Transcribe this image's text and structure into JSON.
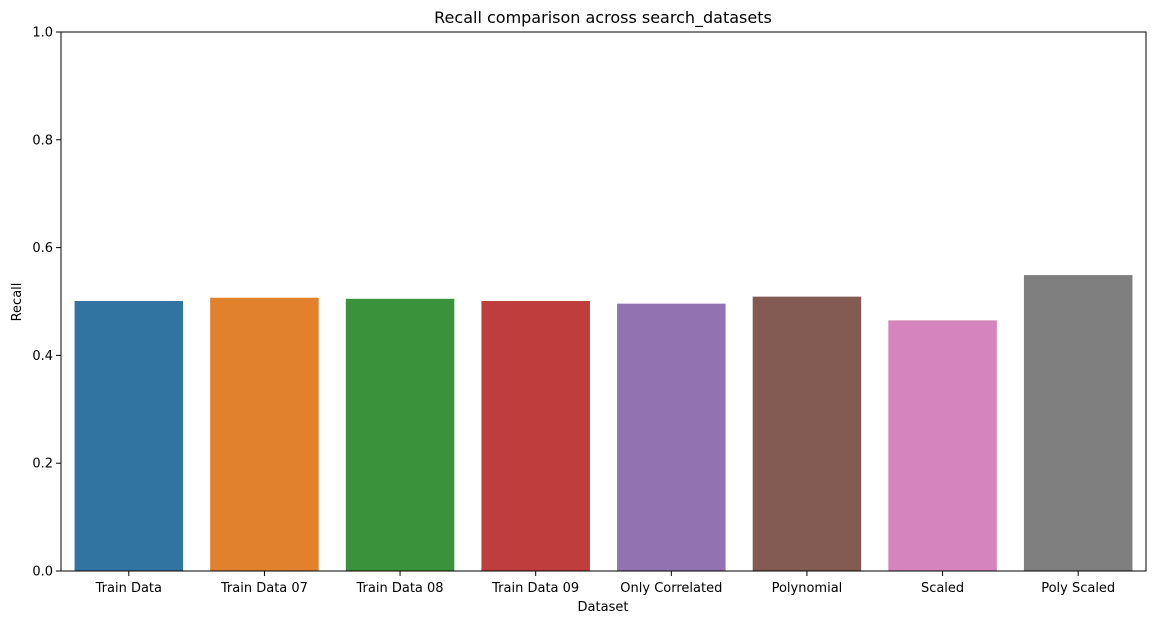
{
  "chart_data": {
    "type": "bar",
    "title": "Recall comparison across search_datasets",
    "xlabel": "Dataset",
    "ylabel": "Recall",
    "ylim": [
      0,
      1.0
    ],
    "yticks": [
      "0.0",
      "0.2",
      "0.4",
      "0.6",
      "0.8",
      "1.0"
    ],
    "grid": false,
    "categories": [
      "Train Data",
      "Train Data 07",
      "Train Data 08",
      "Train Data 09",
      "Only Correlated",
      "Polynomial",
      "Scaled",
      "Poly Scaled"
    ],
    "values": [
      0.501,
      0.507,
      0.505,
      0.501,
      0.496,
      0.509,
      0.465,
      0.549
    ],
    "colors": [
      "#3274a1",
      "#e1812c",
      "#3a923a",
      "#c03d3e",
      "#9372b2",
      "#845b53",
      "#d684bd",
      "#7f7f7f"
    ]
  }
}
